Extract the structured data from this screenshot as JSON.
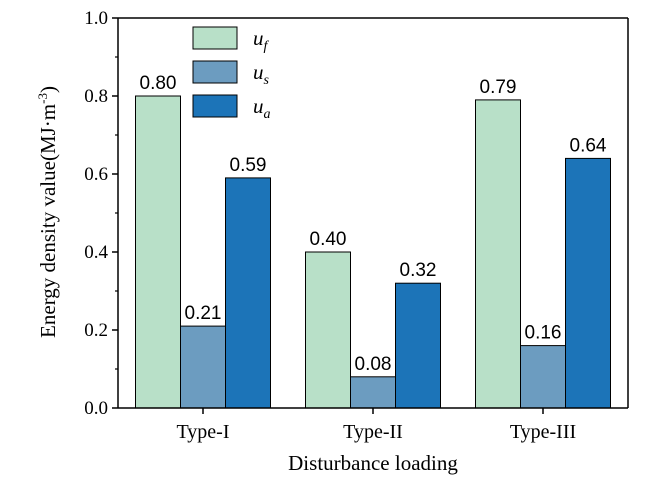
{
  "chart_data": {
    "type": "bar",
    "title": "",
    "xlabel": "Disturbance loading",
    "ylabel": "Energy density value(MJ·m",
    "ylabel_sup": "-3",
    "ylabel_close": ")",
    "ylim": [
      0.0,
      1.0
    ],
    "yticks": [
      "0.0",
      "0.2",
      "0.4",
      "0.6",
      "0.8",
      "1.0"
    ],
    "categories": [
      "Type-I",
      "Type-II",
      "Type-III"
    ],
    "series": [
      {
        "name": "u",
        "sub": "f",
        "color": "#b8e0c8",
        "values": [
          0.8,
          0.4,
          0.79
        ],
        "labels": [
          "0.80",
          "0.40",
          "0.79"
        ]
      },
      {
        "name": "u",
        "sub": "s",
        "color": "#6c9cc0",
        "values": [
          0.21,
          0.08,
          0.16
        ],
        "labels": [
          "0.21",
          "0.08",
          "0.16"
        ]
      },
      {
        "name": "u",
        "sub": "a",
        "color": "#1c74b8",
        "values": [
          0.59,
          0.32,
          0.64
        ],
        "labels": [
          "0.59",
          "0.32",
          "0.64"
        ]
      }
    ],
    "legend_position": "top-left"
  }
}
